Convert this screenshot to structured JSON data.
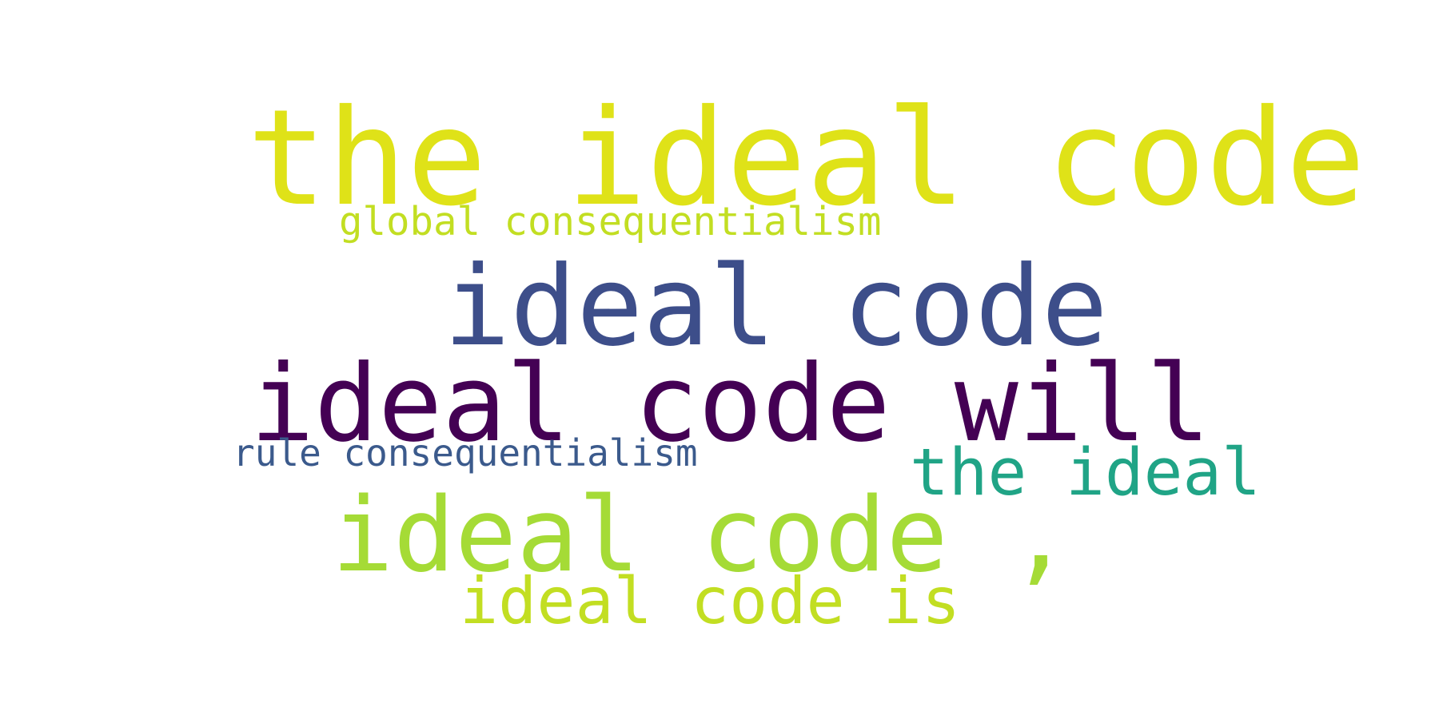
{
  "word_cloud": {
    "words": [
      {
        "id": "the-ideal-code",
        "text": "the ideal code",
        "color": "#DFE218"
      },
      {
        "id": "global-conseq",
        "text": "global consequentialism",
        "color": "#C2DE22"
      },
      {
        "id": "ideal-code",
        "text": "ideal code",
        "color": "#3D4E8A"
      },
      {
        "id": "ideal-code-will",
        "text": "ideal code will",
        "color": "#440154"
      },
      {
        "id": "rule-conseq",
        "text": "rule consequentialism",
        "color": "#3B5A8C"
      },
      {
        "id": "the-ideal",
        "text": "the ideal",
        "color": "#20A486"
      },
      {
        "id": "ideal-code-comma",
        "text": "ideal code ,",
        "color": "#A5DB36"
      },
      {
        "id": "ideal-code-is",
        "text": "ideal code is",
        "color": "#C2DE22"
      }
    ]
  }
}
